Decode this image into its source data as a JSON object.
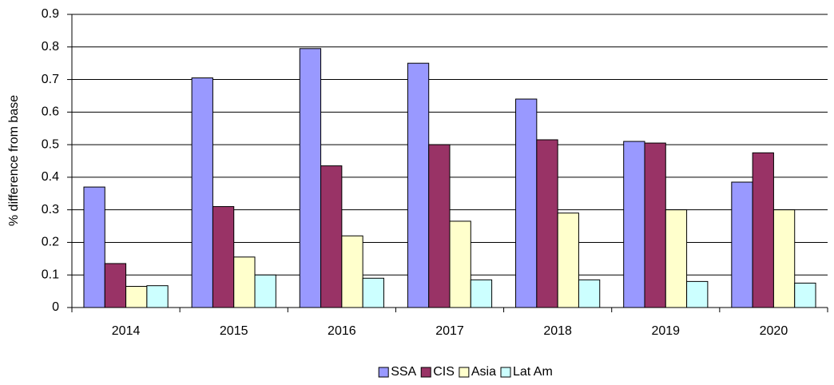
{
  "chart_data": {
    "type": "bar",
    "y_label": "% difference from base",
    "categories": [
      "2014",
      "2015",
      "2016",
      "2017",
      "2018",
      "2019",
      "2020"
    ],
    "series": [
      {
        "name": "SSA",
        "color": "#9999ff",
        "values": [
          0.37,
          0.705,
          0.795,
          0.75,
          0.64,
          0.51,
          0.385
        ]
      },
      {
        "name": "CIS",
        "color": "#993366",
        "values": [
          0.135,
          0.31,
          0.435,
          0.5,
          0.515,
          0.505,
          0.475
        ]
      },
      {
        "name": "Asia",
        "color": "#ffffcc",
        "values": [
          0.065,
          0.155,
          0.22,
          0.265,
          0.29,
          0.3,
          0.3
        ]
      },
      {
        "name": "Lat Am",
        "color": "#ccffff",
        "values": [
          0.067,
          0.1,
          0.09,
          0.085,
          0.085,
          0.08,
          0.075
        ]
      }
    ],
    "ylim": [
      0,
      0.9
    ],
    "yticks": [
      0,
      0.1,
      0.2,
      0.3,
      0.4,
      0.5,
      0.6,
      0.7,
      0.8,
      0.9
    ],
    "grid": true,
    "legend": "bottom"
  }
}
